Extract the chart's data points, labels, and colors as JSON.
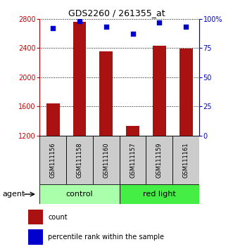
{
  "title": "GDS2260 / 261355_at",
  "samples": [
    "GSM111156",
    "GSM111158",
    "GSM111160",
    "GSM111157",
    "GSM111159",
    "GSM111161"
  ],
  "counts": [
    1640,
    2760,
    2350,
    1330,
    2430,
    2390
  ],
  "percentiles": [
    92,
    98,
    93,
    87,
    97,
    93
  ],
  "bar_color": "#aa1111",
  "dot_color": "#0000cc",
  "ylim_left": [
    1200,
    2800
  ],
  "ylim_right": [
    0,
    100
  ],
  "yticks_left": [
    1200,
    1600,
    2000,
    2400,
    2800
  ],
  "yticks_right": [
    0,
    25,
    50,
    75,
    100
  ],
  "ytick_labels_right": [
    "0",
    "25",
    "50",
    "75",
    "100%"
  ],
  "groups": [
    {
      "label": "control",
      "indices": [
        0,
        1,
        2
      ],
      "color": "#aaffaa"
    },
    {
      "label": "red light",
      "indices": [
        3,
        4,
        5
      ],
      "color": "#44ee44"
    }
  ],
  "agent_label": "agent",
  "legend_count_label": "count",
  "legend_percentile_label": "percentile rank within the sample",
  "grid_color": "#000000",
  "bar_width": 0.5,
  "plot_bg_color": "#ffffff",
  "left_axis_color": "#cc0000",
  "right_axis_color": "#0000cc",
  "sample_box_color": "#cccccc",
  "title_fontsize": 9,
  "tick_fontsize": 7,
  "sample_fontsize": 6,
  "group_fontsize": 8,
  "legend_fontsize": 7,
  "agent_fontsize": 8
}
